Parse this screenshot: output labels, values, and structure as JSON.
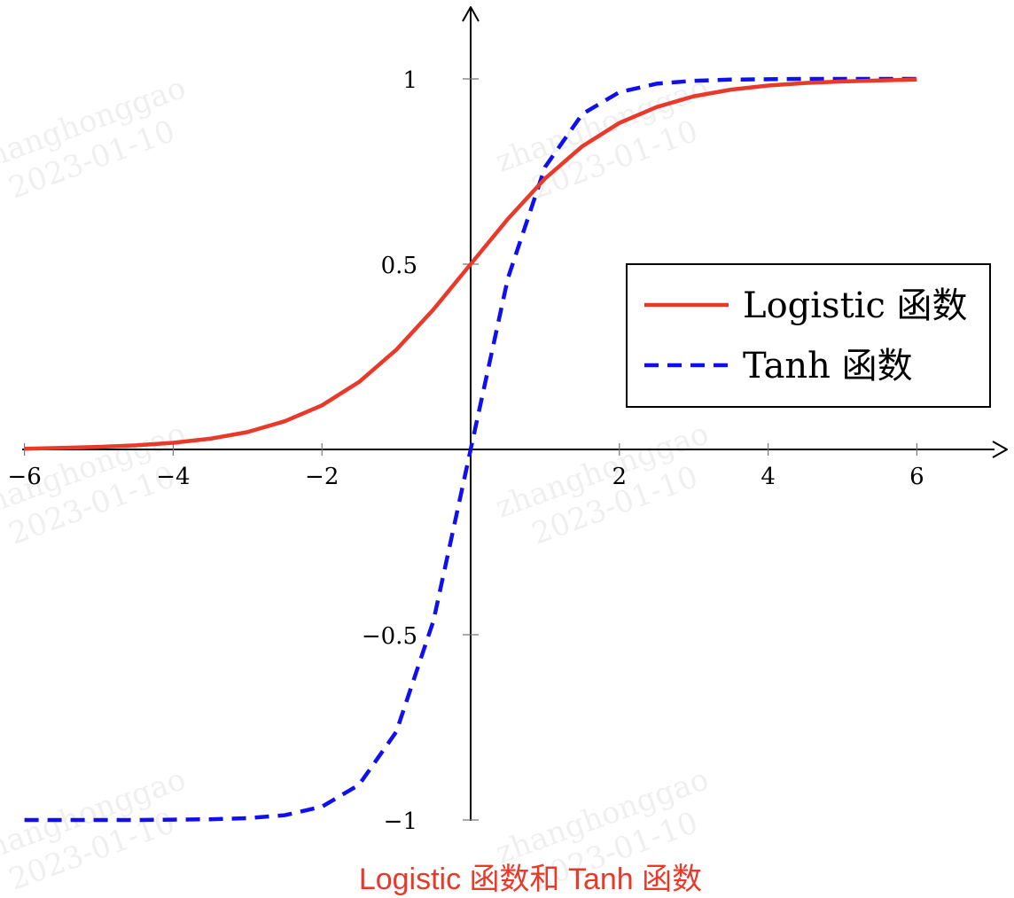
{
  "caption": "Logistic 函数和 Tanh 函数",
  "watermark": {
    "name": "zhanghonggao",
    "date": "2023-01-10"
  },
  "colors": {
    "logistic": "#e8392a",
    "tanh": "#1010ee",
    "caption": "#e8392a",
    "axis": "#000000"
  },
  "chart_data": {
    "type": "line",
    "title": "",
    "xlabel": "",
    "ylabel": "",
    "xlim": [
      -6,
      6
    ],
    "ylim": [
      -1,
      1
    ],
    "x_ticks": [
      -6,
      -4,
      -2,
      2,
      4,
      6
    ],
    "x_tick_labels": [
      "−6",
      "−4",
      "−2",
      "2",
      "4",
      "6"
    ],
    "y_ticks": [
      1,
      0.5,
      -0.5,
      -1
    ],
    "y_tick_labels": [
      "1",
      "0.5",
      "−0.5",
      "−1"
    ],
    "grid": false,
    "legend_position": "right",
    "x": [
      -6,
      -5.5,
      -5,
      -4.5,
      -4,
      -3.5,
      -3,
      -2.5,
      -2,
      -1.5,
      -1,
      -0.5,
      0,
      0.5,
      1,
      1.5,
      2,
      2.5,
      3,
      3.5,
      4,
      4.5,
      5,
      5.5,
      6
    ],
    "series": [
      {
        "name": "Logistic 函数",
        "style": "solid",
        "values": [
          0.002,
          0.004,
          0.007,
          0.011,
          0.018,
          0.029,
          0.047,
          0.076,
          0.119,
          0.182,
          0.269,
          0.378,
          0.5,
          0.622,
          0.731,
          0.818,
          0.881,
          0.924,
          0.953,
          0.971,
          0.982,
          0.989,
          0.993,
          0.996,
          0.998
        ]
      },
      {
        "name": "Tanh 函数",
        "style": "dashed",
        "values": [
          -1.0,
          -1.0,
          -1.0,
          -1.0,
          -0.999,
          -0.998,
          -0.995,
          -0.987,
          -0.964,
          -0.905,
          -0.762,
          -0.462,
          0,
          0.462,
          0.762,
          0.905,
          0.964,
          0.987,
          0.995,
          0.998,
          0.999,
          1.0,
          1.0,
          1.0,
          1.0
        ]
      }
    ]
  }
}
